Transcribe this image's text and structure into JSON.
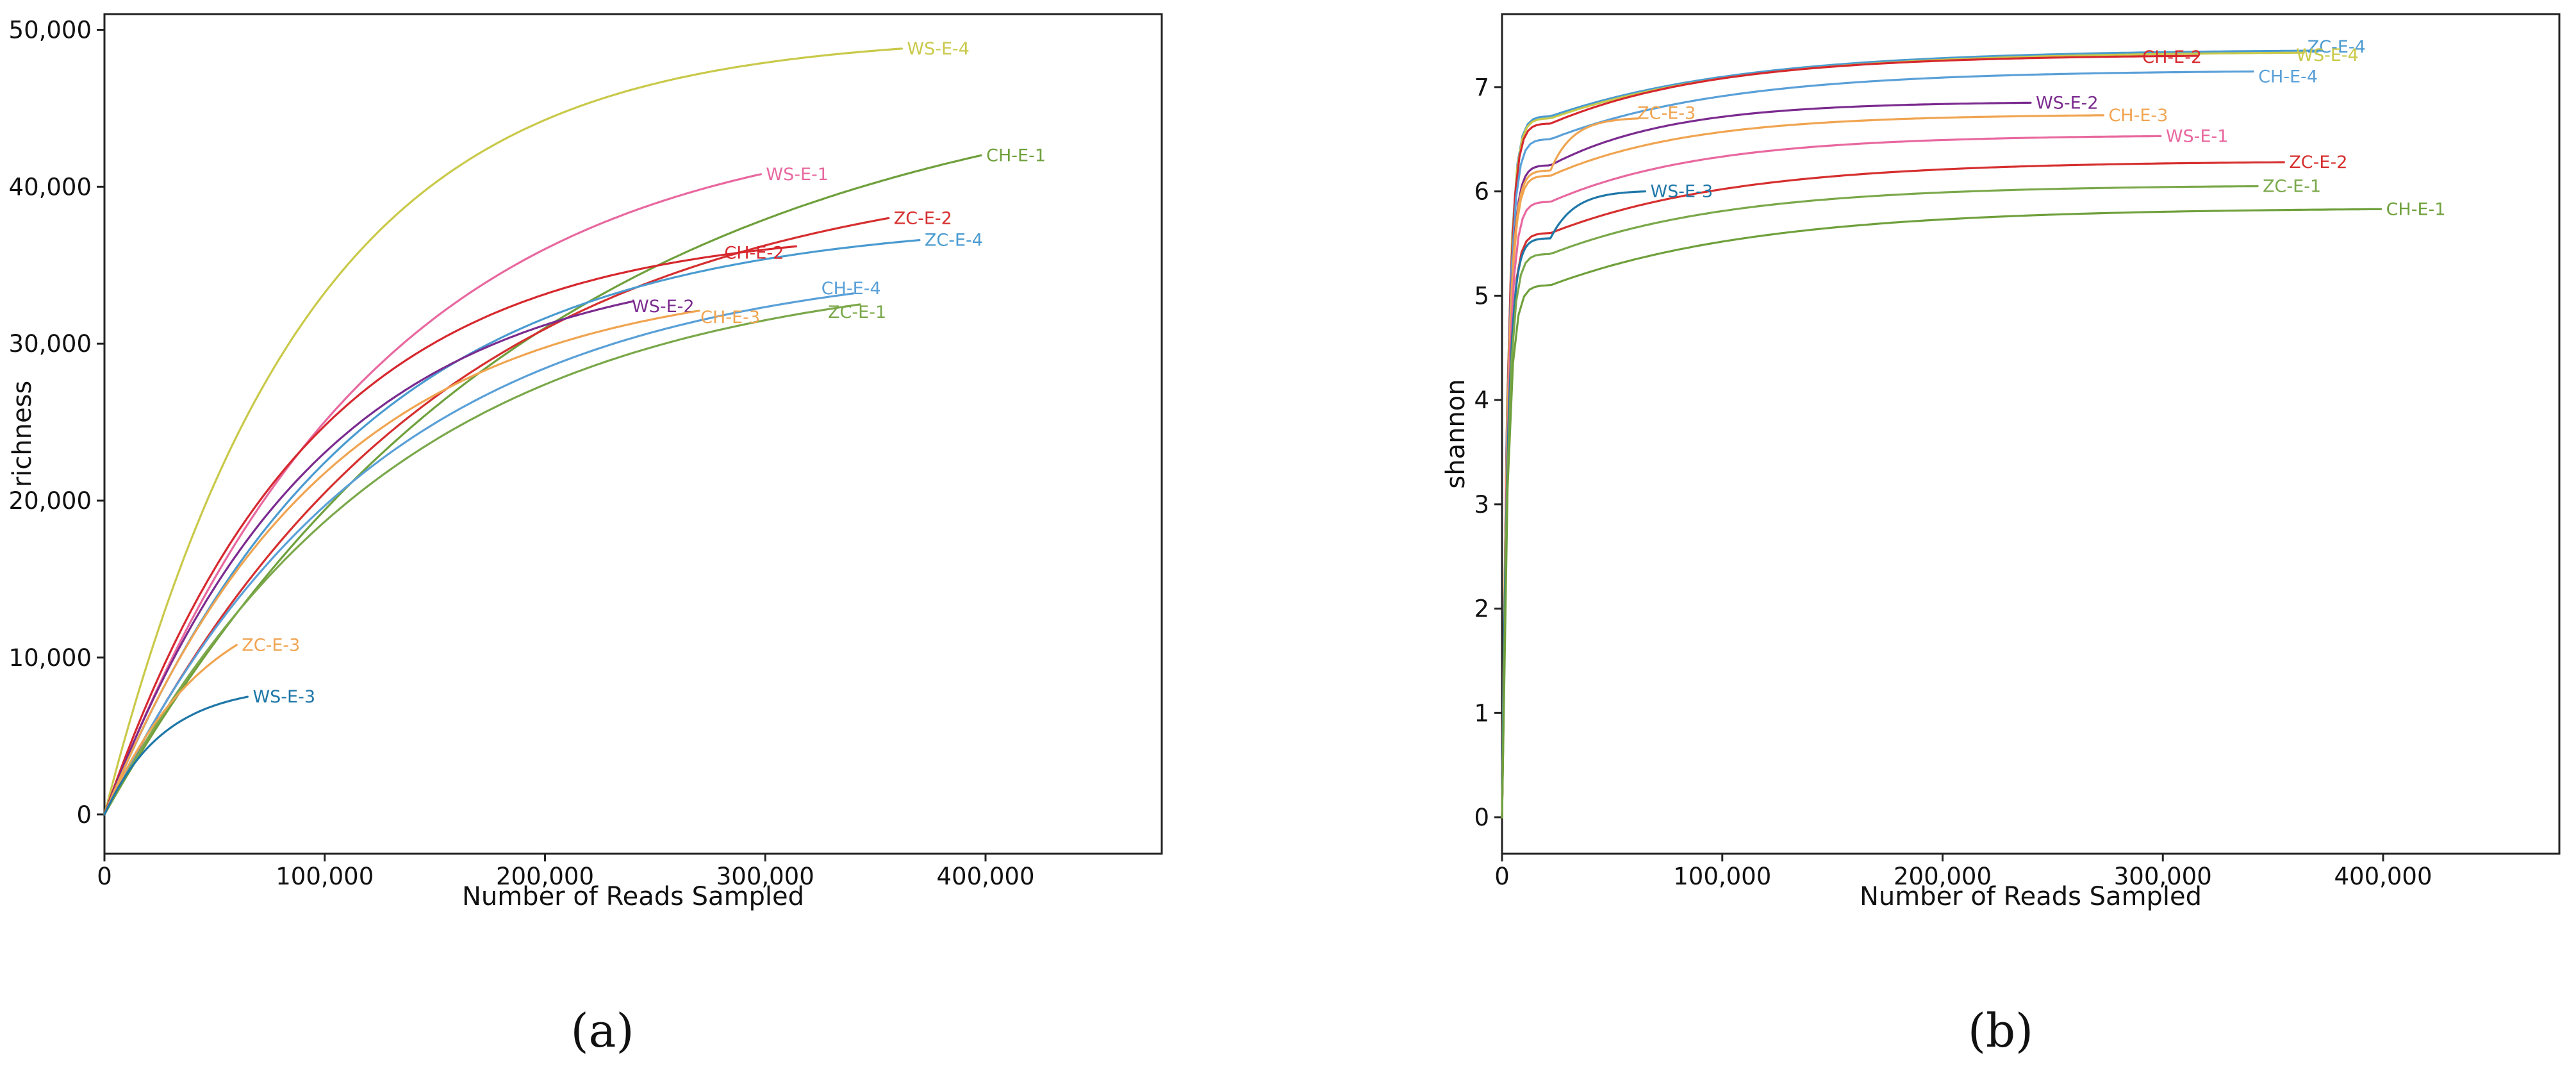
{
  "chart_data": [
    {
      "type": "line",
      "panel_label": "(a)",
      "title": "",
      "xlabel": "Number of Reads Sampled",
      "ylabel": "richness",
      "xlim": [
        0,
        480000
      ],
      "ylim": [
        -2500,
        51000
      ],
      "xticks": [
        0,
        100000,
        200000,
        300000,
        400000
      ],
      "xtick_labels": [
        "0",
        "100,000",
        "200,000",
        "300,000",
        "400,000"
      ],
      "yticks": [
        0,
        10000,
        20000,
        30000,
        40000,
        50000
      ],
      "ytick_labels": [
        "0",
        "10,000",
        "20,000",
        "30,000",
        "40,000",
        "50,000"
      ],
      "grid": false,
      "series": [
        {
          "name": "WS-E-4",
          "color": "#c9c94a",
          "max_x": 362000,
          "max_y": 48800,
          "k": 4.0
        },
        {
          "name": "CH-E-1",
          "color": "#6fa03c",
          "max_x": 398000,
          "max_y": 42000,
          "k": 2.05
        },
        {
          "name": "WS-E-1",
          "color": "#e8689f",
          "max_x": 298000,
          "max_y": 40800,
          "k": 2.45
        },
        {
          "name": "ZC-E-2",
          "color": "#d62f2f",
          "max_x": 356000,
          "max_y": 38000,
          "k": 2.4
        },
        {
          "name": "ZC-E-4",
          "color": "#4a9bd0",
          "max_x": 370000,
          "max_y": 36600,
          "k": 3.3
        },
        {
          "name": "CH-E-2",
          "color": "#d6282e",
          "max_x": 314000,
          "max_y": 36200,
          "k": 3.4
        },
        {
          "name": "CH-E-4",
          "color": "#5aa0d8",
          "max_x": 340000,
          "max_y": 33200,
          "k": 2.75
        },
        {
          "name": "ZC-E-1",
          "color": "#7aa84a",
          "max_x": 343000,
          "max_y": 32500,
          "k": 2.6
        },
        {
          "name": "WS-E-2",
          "color": "#7b2b8f",
          "max_x": 240000,
          "max_y": 32700,
          "k": 2.5
        },
        {
          "name": "CH-E-3",
          "color": "#f0a450",
          "max_x": 270000,
          "max_y": 32100,
          "k": 2.7
        },
        {
          "name": "ZC-E-3",
          "color": "#f0a450",
          "max_x": 60000,
          "max_y": 10800,
          "k": 1.3
        },
        {
          "name": "WS-E-3",
          "color": "#1f77a8",
          "max_x": 65000,
          "max_y": 7500,
          "k": 2.4
        }
      ]
    },
    {
      "type": "line",
      "panel_label": "(b)",
      "title": "",
      "xlabel": "Number of Reads Sampled",
      "ylabel": "shannon",
      "xlim": [
        0,
        480000
      ],
      "ylim": [
        -0.35,
        7.7
      ],
      "xticks": [
        0,
        100000,
        200000,
        300000,
        400000
      ],
      "xtick_labels": [
        "0",
        "100,000",
        "200,000",
        "300,000",
        "400,000"
      ],
      "yticks": [
        0,
        1,
        2,
        3,
        4,
        5,
        6,
        7
      ],
      "ytick_labels": [
        "0",
        "1",
        "2",
        "3",
        "4",
        "5",
        "6",
        "7"
      ],
      "grid": false,
      "series": [
        {
          "name": "ZC-E-4",
          "color": "#4a9bd0",
          "max_x": 372000,
          "max_y": 7.35,
          "y_knee": 6.72
        },
        {
          "name": "WS-E-4",
          "color": "#c9c94a",
          "max_x": 364000,
          "max_y": 7.33,
          "y_knee": 6.7
        },
        {
          "name": "CH-E-2",
          "color": "#d6282e",
          "max_x": 316000,
          "max_y": 7.3,
          "y_knee": 6.65
        },
        {
          "name": "CH-E-4",
          "color": "#5aa0d8",
          "max_x": 341000,
          "max_y": 7.15,
          "y_knee": 6.5
        },
        {
          "name": "WS-E-2",
          "color": "#7b2b8f",
          "max_x": 240000,
          "max_y": 6.85,
          "y_knee": 6.25
        },
        {
          "name": "CH-E-3",
          "color": "#f0a450",
          "max_x": 273000,
          "max_y": 6.73,
          "y_knee": 6.15
        },
        {
          "name": "ZC-E-3",
          "color": "#f0a450",
          "max_x": 62000,
          "max_y": 6.7,
          "y_knee": 6.2
        },
        {
          "name": "WS-E-1",
          "color": "#e8689f",
          "max_x": 299000,
          "max_y": 6.53,
          "y_knee": 5.9
        },
        {
          "name": "ZC-E-2",
          "color": "#d62f2f",
          "max_x": 355000,
          "max_y": 6.28,
          "y_knee": 5.6
        },
        {
          "name": "WS-E-3",
          "color": "#1f77a8",
          "max_x": 65000,
          "max_y": 6.0,
          "y_knee": 5.55
        },
        {
          "name": "ZC-E-1",
          "color": "#7aa84a",
          "max_x": 343000,
          "max_y": 6.05,
          "y_knee": 5.4
        },
        {
          "name": "CH-E-1",
          "color": "#6fa03c",
          "max_x": 399000,
          "max_y": 5.83,
          "y_knee": 5.1
        }
      ]
    }
  ]
}
